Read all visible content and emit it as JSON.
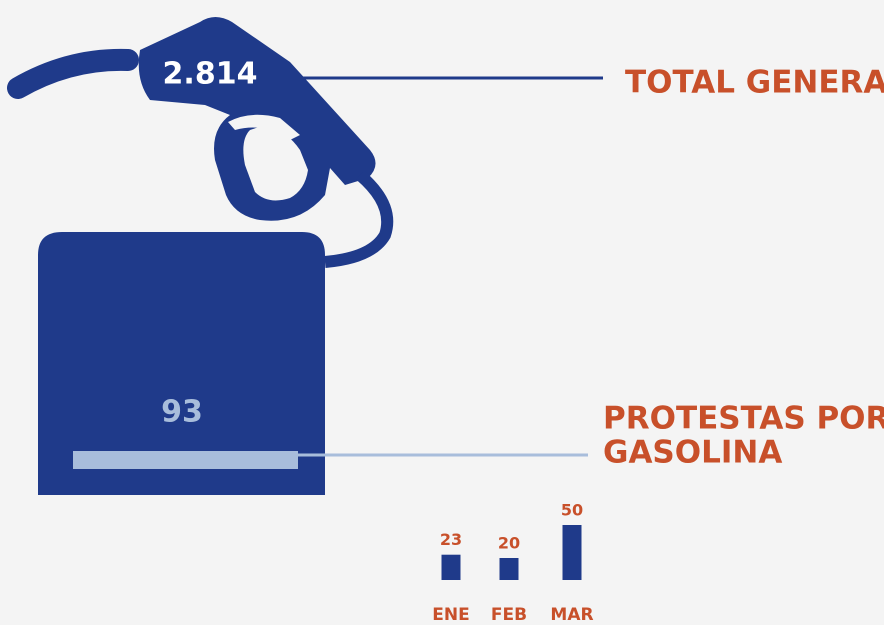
{
  "infographic": {
    "total": {
      "value": "2.814",
      "label": "TOTAL GENERAL"
    },
    "gasoline": {
      "value": "93",
      "label_lines": [
        "PROTESTAS POR",
        "GASOLINA"
      ]
    }
  },
  "chart_data": {
    "type": "bar",
    "categories": [
      "ENE",
      "FEB",
      "MAR"
    ],
    "values": [
      23,
      20,
      50
    ],
    "color": "#1f3a8a",
    "label_color": "#c8502a"
  }
}
